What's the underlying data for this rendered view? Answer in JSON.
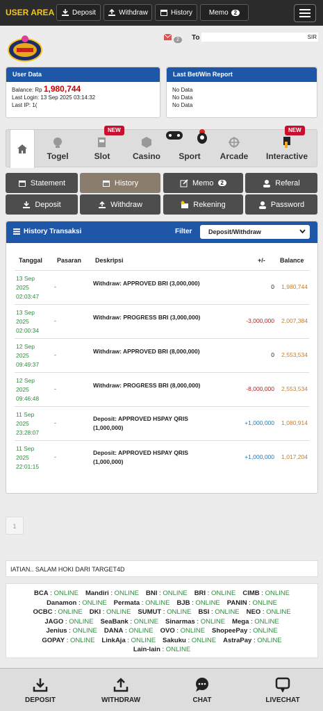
{
  "topbar": {
    "brand": "USER AREA",
    "deposit": "Deposit",
    "withdraw": "Withdraw",
    "history": "History",
    "memo": "Memo",
    "memo_count": "2"
  },
  "header": {
    "mail_count": "2",
    "to_label": "To",
    "marquee": "SIR"
  },
  "user_data": {
    "title": "User Data",
    "balance_label": "Balance: Rp",
    "balance_value": "1,980,744",
    "last_login": "Last Login: 13 Sep 2025 03:14:32",
    "last_ip": "Last IP: 1("
  },
  "last_bet": {
    "title": "Last Bet/Win Report",
    "lines": [
      "No Data",
      "No Data",
      "No Data"
    ]
  },
  "categories": [
    "Togel",
    "Slot",
    "Casino",
    "Sport",
    "Arcade",
    "Interactive"
  ],
  "new_badge": "NEW",
  "menu": {
    "statement": "Statement",
    "history": "History",
    "memo": "Memo",
    "memo_count": "2",
    "referal": "Referal",
    "deposit": "Deposit",
    "withdraw": "Withdraw",
    "rekening": "Rekening",
    "password": "Password"
  },
  "history": {
    "title": "History Transaksi",
    "filter_label": "Filter",
    "filter_value": "Deposit/Withdraw",
    "columns": [
      "Tanggal",
      "Pasaran",
      "Deskripsi",
      "+/-",
      "Balance"
    ],
    "rows": [
      {
        "date1": "13 Sep",
        "date2": "2025",
        "date3": "02:03:47",
        "pasaran": "-",
        "desc1": "Withdraw: APPROVED BRI (3,000,000)",
        "desc2": "",
        "amount": "0",
        "balance": "1,980,744"
      },
      {
        "date1": "13 Sep",
        "date2": "2025",
        "date3": "02:00:34",
        "pasaran": "-",
        "desc1": "Withdraw: PROGRESS BRI (3,000,000)",
        "desc2": "",
        "amount": "-3,000,000",
        "balance": "2,007,384"
      },
      {
        "date1": "12 Sep",
        "date2": "2025",
        "date3": "09:49:37",
        "pasaran": "-",
        "desc1": "Withdraw: APPROVED BRI (8,000,000)",
        "desc2": "",
        "amount": "0",
        "balance": "2,553,534"
      },
      {
        "date1": "12 Sep",
        "date2": "2025",
        "date3": "09:46:48",
        "pasaran": "-",
        "desc1": "Withdraw: PROGRESS BRI (8,000,000)",
        "desc2": "",
        "amount": "-8,000,000",
        "balance": "2,553,534"
      },
      {
        "date1": "11 Sep",
        "date2": "2025",
        "date3": "23:28:07",
        "pasaran": "-",
        "desc1": "Deposit: APPROVED HSPAY QRIS",
        "desc2": "(1,000,000)",
        "amount": "+1,000,000",
        "balance": "1,080,914"
      },
      {
        "date1": "11 Sep",
        "date2": "2025",
        "date3": "22:01:15",
        "pasaran": "-",
        "desc1": "Deposit: APPROVED HSPAY QRIS",
        "desc2": "(1,000,000)",
        "amount": "+1,000,000",
        "balance": "1,017,204"
      }
    ]
  },
  "pagination": {
    "page": "1"
  },
  "ticker": "IATIAN.. SALAM HOKI DARI TARGET4D",
  "banks": [
    [
      {
        "n": "BCA",
        "s": "ONLINE"
      },
      {
        "n": "Mandiri",
        "s": "ONLINE"
      },
      {
        "n": "BNI",
        "s": "ONLINE"
      },
      {
        "n": "BRI",
        "s": "ONLINE"
      },
      {
        "n": "CIMB",
        "s": "ONLINE"
      }
    ],
    [
      {
        "n": "Danamon",
        "s": "ONLINE"
      },
      {
        "n": "Permata",
        "s": "ONLINE"
      },
      {
        "n": "BJB",
        "s": "ONLINE"
      },
      {
        "n": "PANIN",
        "s": "ONLINE"
      }
    ],
    [
      {
        "n": "OCBC",
        "s": "ONLINE"
      },
      {
        "n": "DKI",
        "s": "ONLINE"
      },
      {
        "n": "SUMUT",
        "s": "ONLINE"
      },
      {
        "n": "BSI",
        "s": "ONLINE"
      },
      {
        "n": "NEO",
        "s": "ONLINE"
      }
    ],
    [
      {
        "n": "JAGO",
        "s": "ONLINE"
      },
      {
        "n": "SeaBank",
        "s": "ONLINE"
      },
      {
        "n": "Sinarmas",
        "s": "ONLINE"
      },
      {
        "n": "Mega",
        "s": "ONLINE"
      }
    ],
    [
      {
        "n": "Jenius",
        "s": "ONLINE"
      },
      {
        "n": "DANA",
        "s": "ONLINE"
      },
      {
        "n": "OVO",
        "s": "ONLINE"
      },
      {
        "n": "ShopeePay",
        "s": "ONLINE"
      }
    ],
    [
      {
        "n": "GOPAY",
        "s": "ONLINE"
      },
      {
        "n": "LinkAja",
        "s": "ONLINE"
      },
      {
        "n": "Sakuku",
        "s": "ONLINE"
      },
      {
        "n": "AstraPay",
        "s": "ONLINE"
      }
    ],
    [
      {
        "n": "Lain-lain",
        "s": "ONLINE"
      }
    ]
  ],
  "bottom": {
    "deposit": "DEPOSIT",
    "withdraw": "WITHDRAW",
    "chat": "CHAT",
    "livechat": "LIVECHAT"
  }
}
